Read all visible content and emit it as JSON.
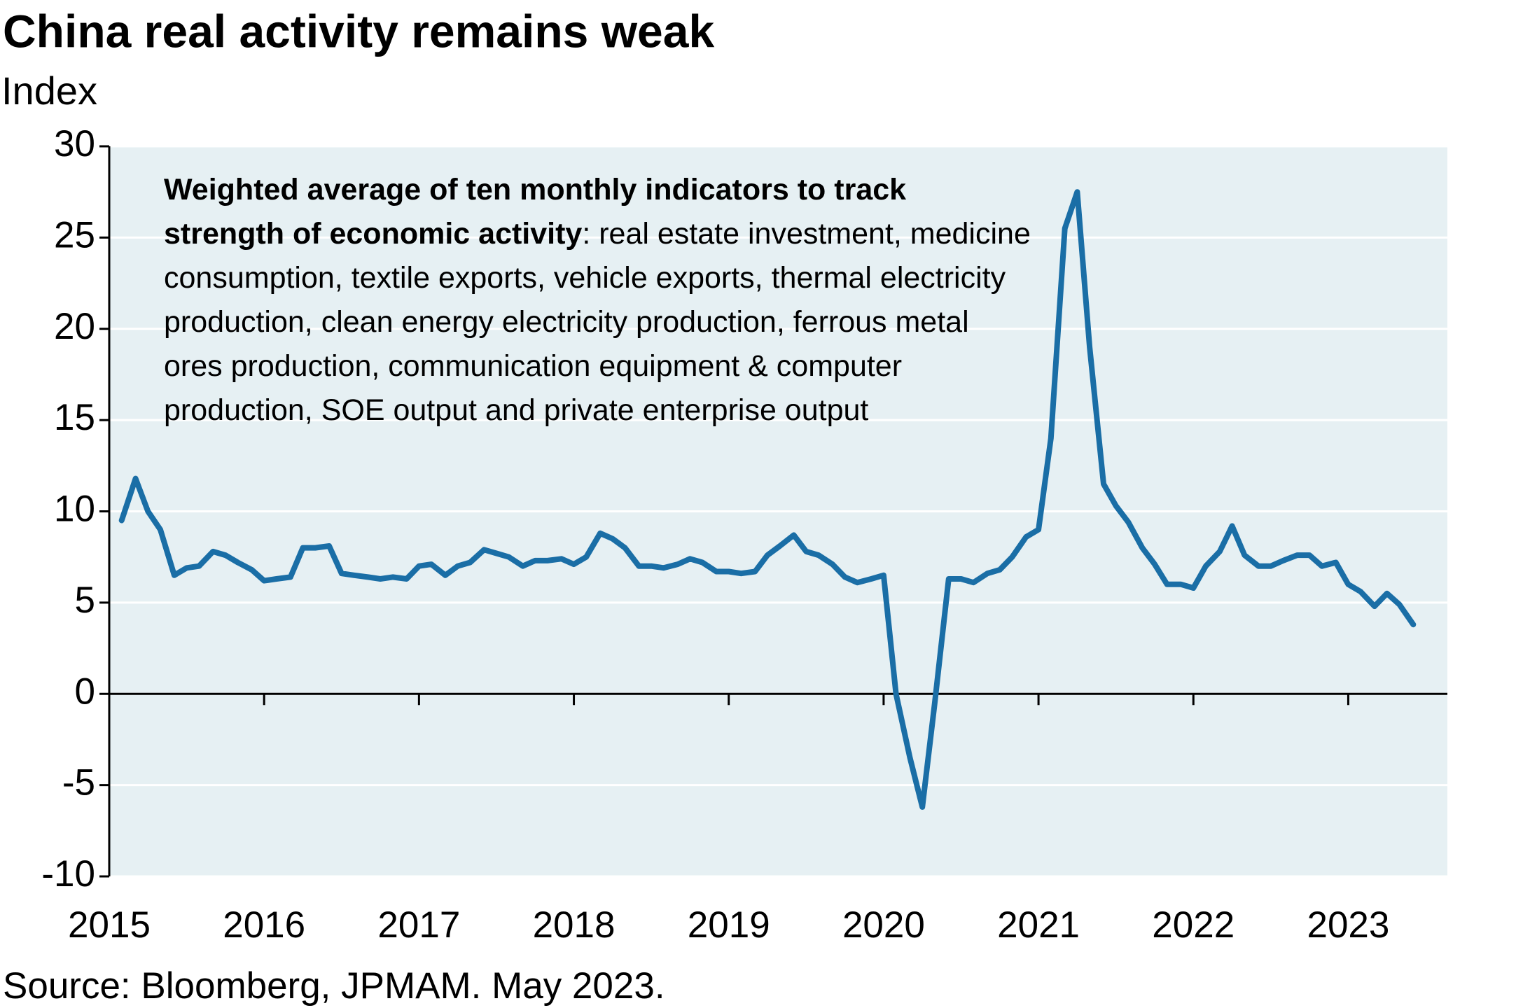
{
  "chart_data": {
    "type": "line",
    "title": "China real activity remains weak",
    "subtitle": "Index",
    "annotation_bold": "Weighted average of ten monthly indicators to track strength of economic activity",
    "annotation": ": real estate investment, medicine consumption, textile exports, vehicle exports, thermal electricity production, clean energy electricity production, ferrous metal ores production, communication equipment & computer production, SOE output and private enterprise output",
    "source": "Source: Bloomberg, JPMAM. May 2023.",
    "color": "#1a6ea6",
    "x": [
      2015.08,
      2015.17,
      2015.25,
      2015.33,
      2015.42,
      2015.5,
      2015.58,
      2015.67,
      2015.75,
      2015.83,
      2015.92,
      2016.0,
      2016.08,
      2016.17,
      2016.25,
      2016.33,
      2016.42,
      2016.5,
      2016.58,
      2016.67,
      2016.75,
      2016.83,
      2016.92,
      2017.0,
      2017.08,
      2017.17,
      2017.25,
      2017.33,
      2017.42,
      2017.5,
      2017.58,
      2017.67,
      2017.75,
      2017.83,
      2017.92,
      2018.0,
      2018.08,
      2018.17,
      2018.25,
      2018.33,
      2018.42,
      2018.5,
      2018.58,
      2018.67,
      2018.75,
      2018.83,
      2018.92,
      2019.0,
      2019.08,
      2019.17,
      2019.25,
      2019.33,
      2019.42,
      2019.5,
      2019.58,
      2019.67,
      2019.75,
      2019.83,
      2019.92,
      2020.0,
      2020.08,
      2020.17,
      2020.25,
      2020.33,
      2020.42,
      2020.5,
      2020.58,
      2020.67,
      2020.75,
      2020.83,
      2020.92,
      2021.0,
      2021.08,
      2021.17,
      2021.25,
      2021.33,
      2021.42,
      2021.5,
      2021.58,
      2021.67,
      2021.75,
      2021.83,
      2021.92,
      2022.0,
      2022.08,
      2022.17,
      2022.25,
      2022.33,
      2022.42,
      2022.5,
      2022.58,
      2022.67,
      2022.75,
      2022.83,
      2022.92,
      2023.0,
      2023.08,
      2023.17,
      2023.25,
      2023.33,
      2023.42
    ],
    "values": [
      9.5,
      11.8,
      10,
      9,
      6.5,
      6.9,
      7,
      7.8,
      7.6,
      7.2,
      6.8,
      6.2,
      6.3,
      6.4,
      8,
      8,
      8.1,
      6.6,
      6.5,
      6.4,
      6.3,
      6.4,
      6.3,
      7,
      7.1,
      6.5,
      7,
      7.2,
      7.9,
      7.7,
      7.5,
      7,
      7.3,
      7.3,
      7.4,
      7.1,
      7.5,
      8.8,
      8.5,
      8,
      7,
      7,
      6.9,
      7.1,
      7.4,
      7.2,
      6.7,
      6.7,
      6.6,
      6.7,
      7.6,
      8.1,
      8.7,
      7.8,
      7.6,
      7.1,
      6.4,
      6.1,
      6.3,
      6.5,
      0,
      -3.5,
      -6.2,
      -0.5,
      6.3,
      6.3,
      6.1,
      6.6,
      6.8,
      7.5,
      8.6,
      9,
      14,
      25.5,
      27.5,
      19,
      11.5,
      10.3,
      9.4,
      8,
      7.1,
      6,
      6,
      5.8,
      7,
      7.8,
      9.2,
      7.6,
      7,
      7,
      7.3,
      7.6,
      7.6,
      7,
      7.2,
      6,
      5.6,
      4.8,
      5.5,
      4.9,
      3.8
    ],
    "xlim": [
      2015,
      2023.64
    ],
    "xticks": [
      2015,
      2016,
      2017,
      2018,
      2019,
      2020,
      2021,
      2022,
      2023
    ],
    "ylim": [
      -10,
      30
    ],
    "yticks": [
      -10,
      -5,
      0,
      5,
      10,
      15,
      20,
      25,
      30
    ],
    "grid": true
  }
}
